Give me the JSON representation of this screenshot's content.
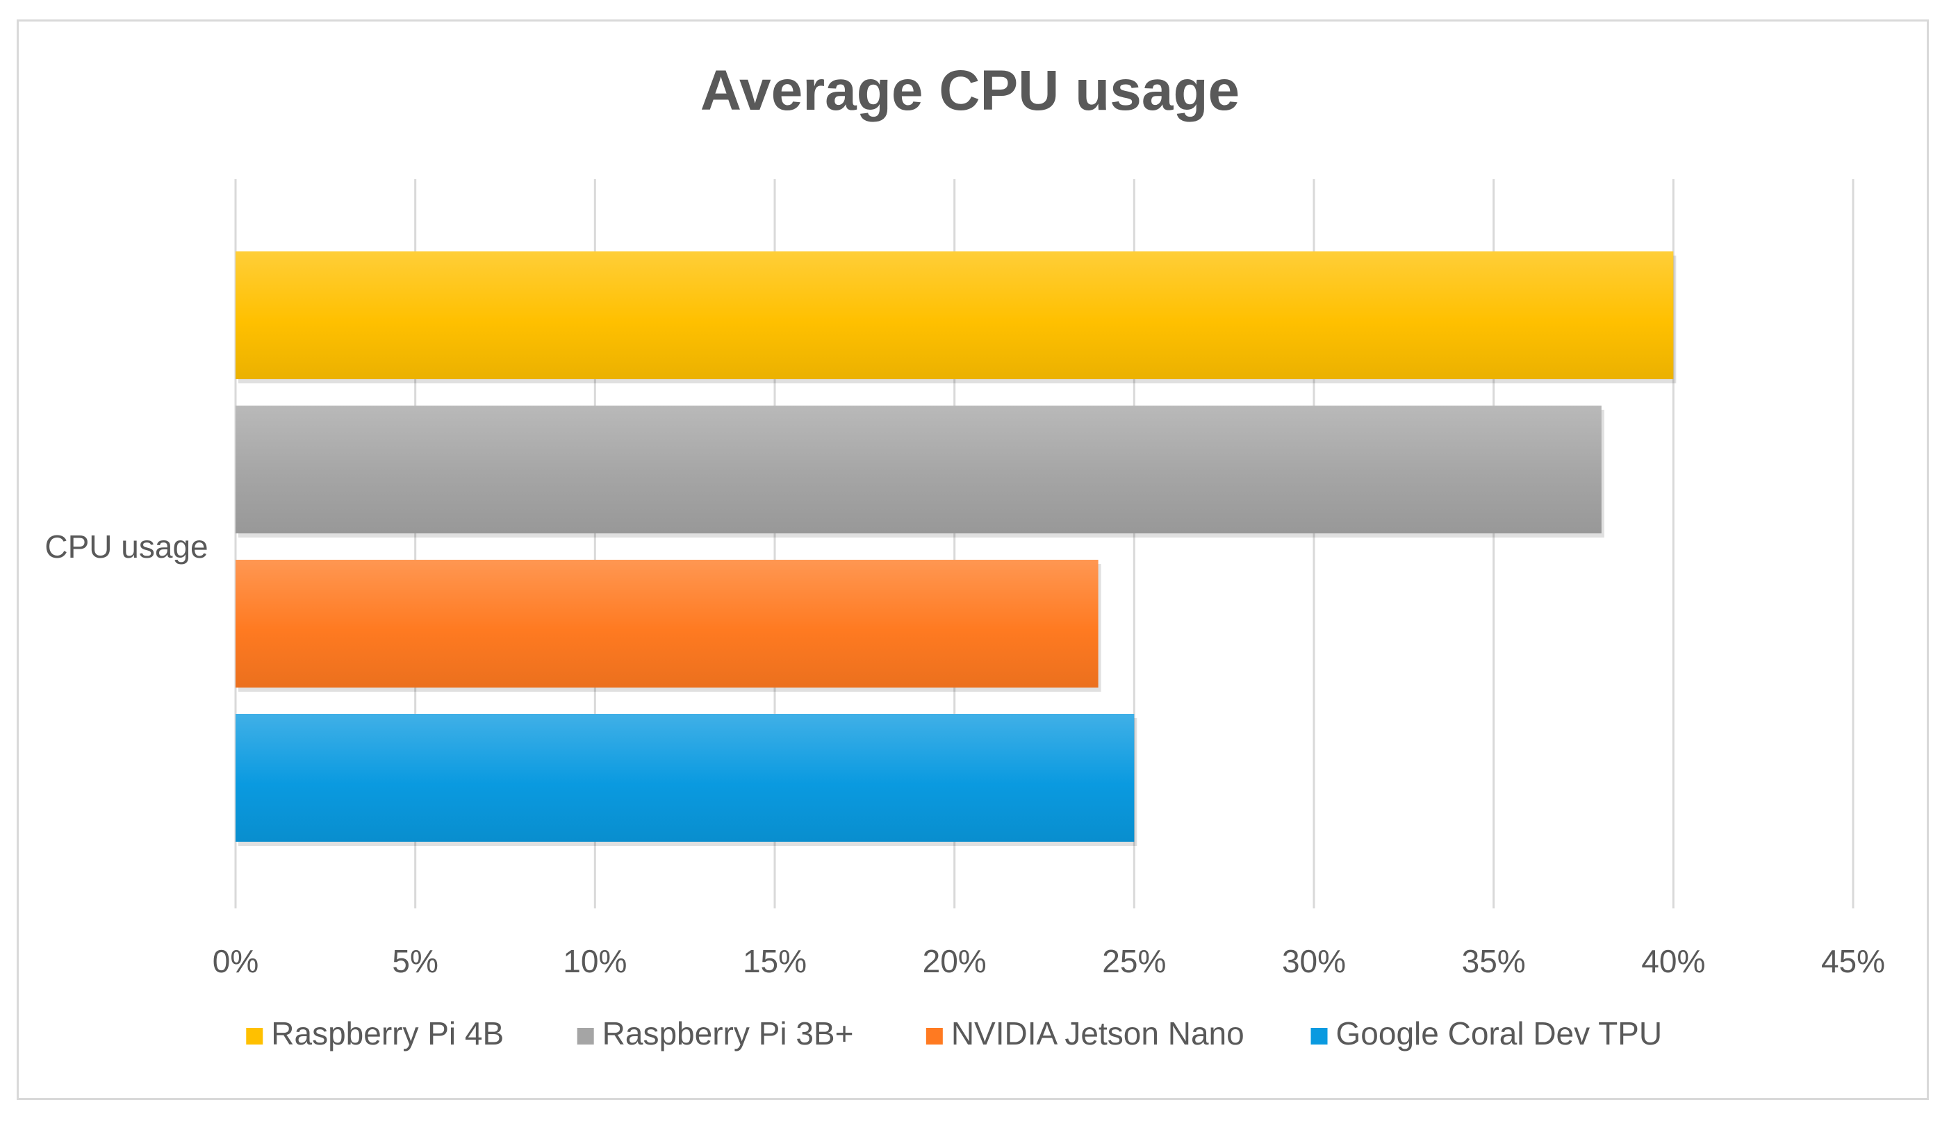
{
  "chart_data": {
    "type": "bar",
    "orientation": "horizontal",
    "title": "Average CPU usage",
    "categories": [
      "CPU usage"
    ],
    "series": [
      {
        "name": "Google Coral Dev TPU",
        "values": [
          0.25
        ],
        "color": "#0a9ae0"
      },
      {
        "name": "NVIDIA Jetson Nano",
        "values": [
          0.24
        ],
        "color": "#ff7a21"
      },
      {
        "name": "Raspberry Pi 3B+",
        "values": [
          0.38
        ],
        "color": "#a5a5a5"
      },
      {
        "name": "Raspberry Pi 4B",
        "values": [
          0.4
        ],
        "color": "#ffc000"
      }
    ],
    "xlim": [
      0,
      0.45
    ],
    "xticks": [
      0,
      0.05,
      0.1,
      0.15,
      0.2,
      0.25,
      0.3,
      0.35,
      0.4,
      0.45
    ],
    "xtick_labels": [
      "0%",
      "5%",
      "10%",
      "15%",
      "20%",
      "25%",
      "30%",
      "35%",
      "40%",
      "45%"
    ],
    "grid": true,
    "legend_position": "bottom",
    "legend_order": [
      "Raspberry Pi 4B",
      "Raspberry Pi 3B+",
      "NVIDIA Jetson Nano",
      "Google Coral Dev TPU"
    ]
  }
}
